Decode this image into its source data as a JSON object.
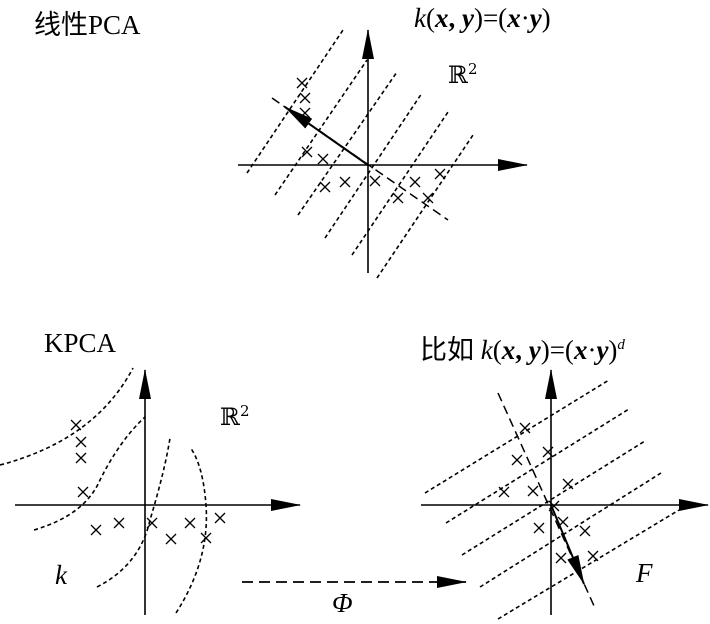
{
  "top": {
    "title": "线性PCA",
    "kernel": {
      "k": "k",
      "open": "(",
      "x": "x",
      "comma": ", ",
      "y": "y",
      "mid": ")=(",
      "x2": "x",
      "dot": "·",
      "y2": "y",
      "close": ")"
    },
    "space": {
      "symbol": "ℝ",
      "exp": "2"
    }
  },
  "bottom_left": {
    "title": "KPCA",
    "space": {
      "symbol": "ℝ",
      "exp": "2"
    },
    "k_label": "k"
  },
  "mapping": {
    "label": "Φ"
  },
  "bottom_right": {
    "prefix": "比如 ",
    "kernel": {
      "k": "k",
      "open": "(",
      "x": "x",
      "comma": ", ",
      "y": "y",
      "mid": ")=(",
      "x2": "x",
      "dot": "·",
      "y2": "y",
      "close": ")",
      "exp": "d"
    },
    "space_label": "F"
  }
}
